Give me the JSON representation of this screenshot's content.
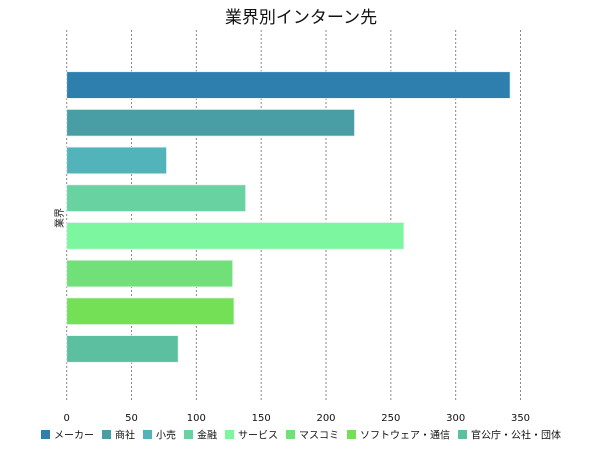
{
  "chart_data": {
    "type": "bar",
    "orientation": "horizontal",
    "title": "業界別インターン先",
    "xlabel": "",
    "ylabel": "業界",
    "xlim": [
      0,
      350
    ],
    "xticks": [
      "0",
      "50",
      "100",
      "150",
      "200",
      "250",
      "300",
      "350"
    ],
    "grid": true,
    "legend_position": "bottom",
    "categories": [
      "メーカー",
      "商社",
      "小売",
      "金融",
      "サービス",
      "マスコミ",
      "ソフトウェア・通信",
      "官公庁・公社・団体"
    ],
    "values": [
      342,
      222,
      77,
      138,
      260,
      128,
      129,
      86
    ],
    "colors": [
      "#2e7fae",
      "#489ea4",
      "#52b3ba",
      "#68d3a0",
      "#7cf7a0",
      "#72e079",
      "#74e055",
      "#5cbf9f"
    ]
  }
}
